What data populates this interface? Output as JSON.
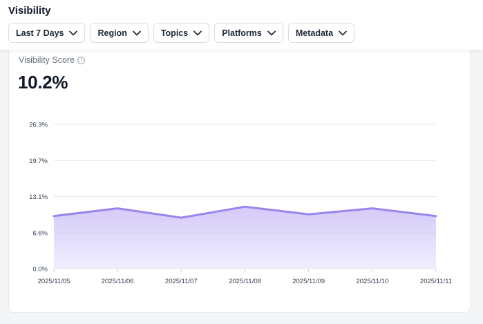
{
  "header": {
    "title": "Visibility",
    "filters": [
      {
        "label": "Last 7 Days"
      },
      {
        "label": "Region"
      },
      {
        "label": "Topics"
      },
      {
        "label": "Platforms"
      },
      {
        "label": "Metadata"
      }
    ]
  },
  "card": {
    "label": "Visibility Score",
    "value": "10.2%"
  },
  "colors": {
    "line": "#9a84ef",
    "fill_top": "#c5b8f7",
    "fill_bottom": "#ece8fd",
    "grid": "#e5e7eb"
  },
  "chart_data": {
    "type": "area",
    "x": [
      "2025/11/05",
      "2025/11/06",
      "2025/11/07",
      "2025/11/08",
      "2025/11/09",
      "2025/11/10",
      "2025/11/11"
    ],
    "series": [
      {
        "values": [
          9.6,
          11.0,
          9.3,
          11.3,
          9.9,
          11.0,
          9.6
        ]
      }
    ],
    "y_ticks": [
      "0.0%",
      "6.6%",
      "13.1%",
      "19.7%",
      "26.3%"
    ],
    "y_tick_values": [
      0,
      6.575,
      13.15,
      19.725,
      26.3
    ],
    "ylim": [
      0,
      26.3
    ],
    "grid": true
  }
}
